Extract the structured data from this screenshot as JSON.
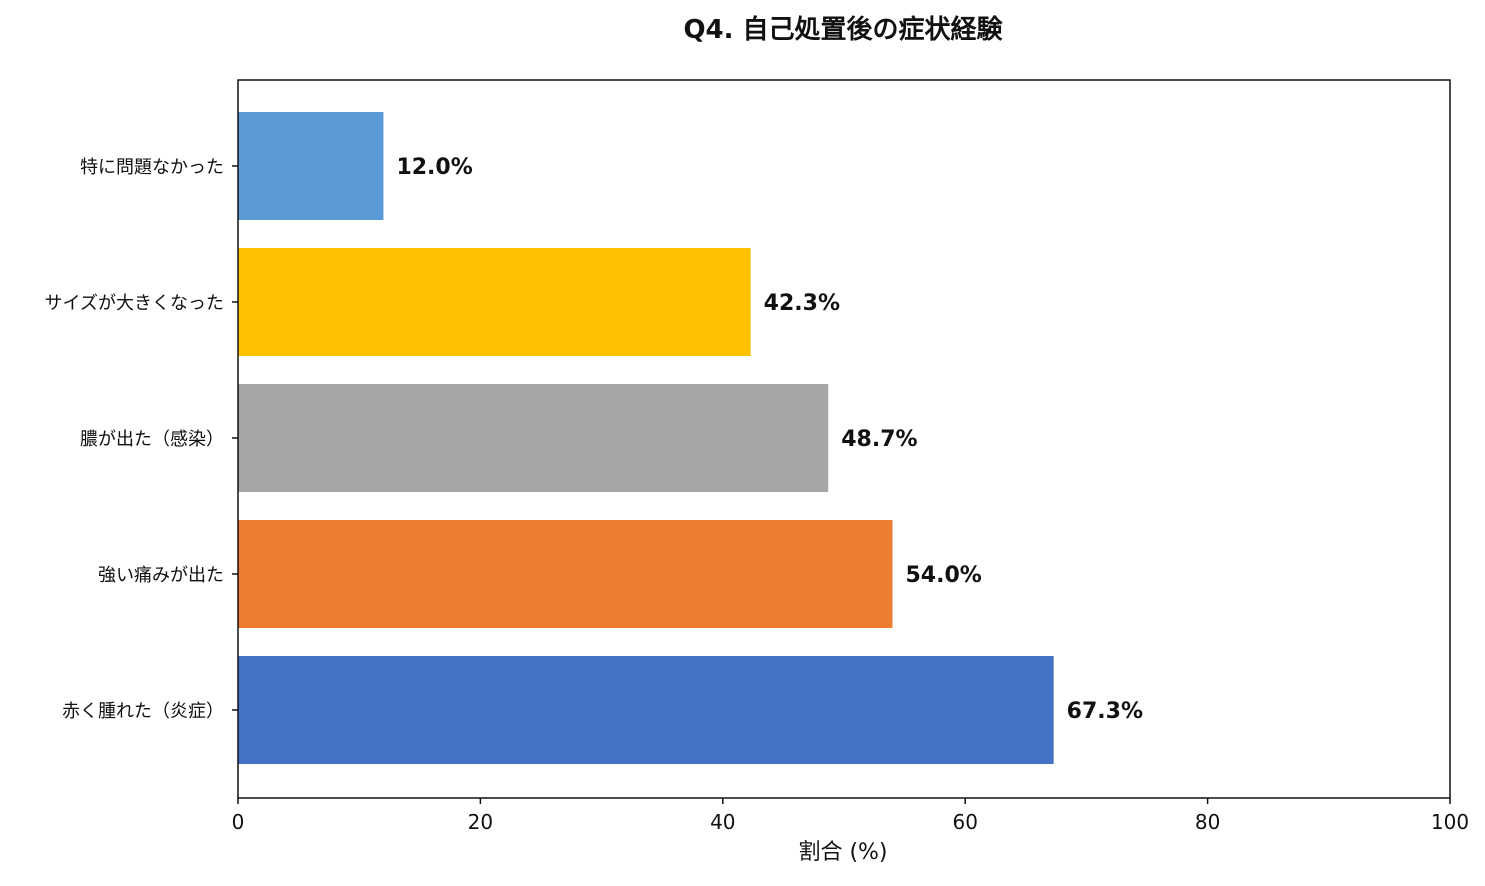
{
  "chart_data": {
    "type": "bar",
    "orientation": "horizontal",
    "title": "Q4. 自己処置後の症状経験",
    "xlabel": "割合 (%)",
    "ylabel": "",
    "xlim": [
      0,
      100
    ],
    "xticks": [
      "0",
      "20",
      "40",
      "60",
      "80",
      "100"
    ],
    "grid": false,
    "categories": [
      "特に問題なかった",
      "サイズが大きくなった",
      "膿が出た（感染）",
      "強い痛みが出た",
      "赤く腫れた（炎症）"
    ],
    "values": [
      12.0,
      42.3,
      48.7,
      54.0,
      67.3
    ],
    "data_labels": [
      "12.0%",
      "42.3%",
      "48.7%",
      "54.0%",
      "67.3%"
    ],
    "colors": [
      "#5b9bd5",
      "#ffc000",
      "#a5a5a5",
      "#ed7d31",
      "#4472c4"
    ]
  }
}
